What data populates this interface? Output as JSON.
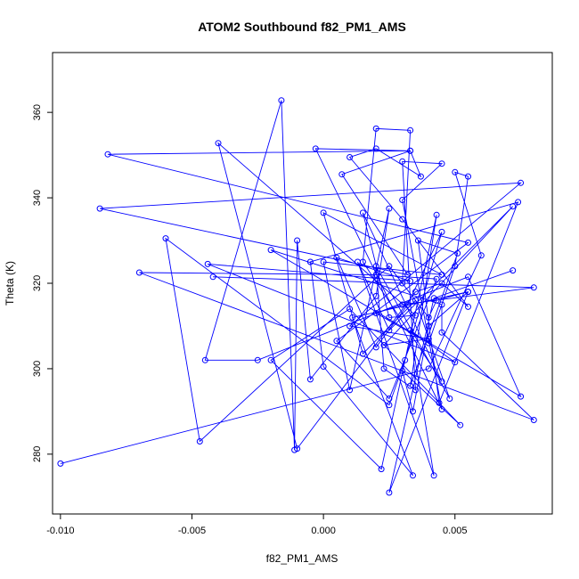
{
  "chart_data": {
    "type": "line",
    "title": "ATOM2 Southbound f82_PM1_AMS",
    "xlabel": "f82_PM1_AMS",
    "ylabel": "Theta (K)",
    "xlim": [
      -0.0103,
      0.0087
    ],
    "ylim": [
      266,
      374
    ],
    "xticks": [
      -0.01,
      -0.005,
      0.0,
      0.005
    ],
    "xtick_labels": [
      "-0.010",
      "-0.005",
      "0.000",
      "0.005"
    ],
    "yticks": [
      280,
      300,
      320,
      340,
      360
    ],
    "ytick_labels": [
      "280",
      "300",
      "320",
      "340",
      "360"
    ],
    "grid": false,
    "legend": "none",
    "color": "#0000ff",
    "points": [
      [
        -0.01,
        277.8
      ],
      [
        0.004,
        300.0
      ],
      [
        0.006,
        326.5
      ],
      [
        0.005,
        346.0
      ],
      [
        0.0055,
        345.0
      ],
      [
        0.005,
        324.0
      ],
      [
        0.004,
        306.0
      ],
      [
        0.002,
        313.0
      ],
      [
        0.003,
        315.0
      ],
      [
        0.008,
        319.0
      ],
      [
        -0.0042,
        321.5
      ],
      [
        0.003,
        320.0
      ],
      [
        0.0033,
        355.8
      ],
      [
        0.002,
        356.2
      ],
      [
        0.0015,
        325.0
      ],
      [
        0.0045,
        297.0
      ],
      [
        0.0015,
        336.5
      ],
      [
        0.0025,
        312.0
      ],
      [
        0.0035,
        312.5
      ],
      [
        -0.004,
        352.8
      ],
      [
        -0.001,
        281.3
      ],
      [
        0.0035,
        318.0
      ],
      [
        0.0045,
        320.0
      ],
      [
        0.0055,
        314.5
      ],
      [
        0.003,
        335.0
      ],
      [
        0.001,
        349.5
      ],
      [
        0.002,
        351.5
      ],
      [
        0.0037,
        345.0
      ],
      [
        0.0033,
        351.0
      ],
      [
        -0.0003,
        351.5
      ],
      [
        0.0045,
        290.5
      ],
      [
        0.003,
        339.5
      ],
      [
        0.0045,
        348.0
      ],
      [
        0.003,
        348.5
      ],
      [
        0.0035,
        295.0
      ],
      [
        0.0023,
        300.0
      ],
      [
        0.002,
        324.0
      ],
      [
        0.0048,
        293.0
      ],
      [
        0.0035,
        316.0
      ],
      [
        0.0015,
        303.5
      ],
      [
        0.0,
        336.5
      ],
      [
        0.0045,
        322.0
      ],
      [
        0.0,
        325.0
      ],
      [
        0.001,
        295.0
      ],
      [
        0.0025,
        337.5
      ],
      [
        0.002,
        317.0
      ],
      [
        -0.0005,
        297.5
      ],
      [
        -0.001,
        330.0
      ],
      [
        -0.0011,
        281.0
      ],
      [
        -0.0016,
        362.8
      ],
      [
        -0.0045,
        302.0
      ],
      [
        -0.0025,
        302.0
      ],
      [
        0.0055,
        321.5
      ],
      [
        0.0075,
        293.5
      ],
      [
        -0.002,
        327.8
      ],
      [
        0.0045,
        315.0
      ],
      [
        0.0045,
        308.5
      ],
      [
        0.008,
        288.0
      ],
      [
        -0.007,
        322.5
      ],
      [
        0.002,
        322.0
      ],
      [
        0.0043,
        321.0
      ],
      [
        0.0025,
        293.0
      ],
      [
        0.0005,
        306.5
      ],
      [
        0.0055,
        329.5
      ],
      [
        -0.0082,
        350.2
      ],
      [
        0.0033,
        351.0
      ],
      [
        0.0007,
        345.5
      ],
      [
        0.0032,
        322.0
      ],
      [
        -0.0085,
        337.5
      ],
      [
        0.0075,
        343.5
      ],
      [
        0.001,
        310.0
      ],
      [
        0.004,
        307.0
      ],
      [
        0.0023,
        305.5
      ],
      [
        0.0072,
        338.0
      ],
      [
        0.0025,
        309.0
      ],
      [
        0.0013,
        325.0
      ],
      [
        0.0042,
        275.0
      ],
      [
        0.0033,
        309.0
      ],
      [
        0.005,
        301.5
      ],
      [
        -0.0044,
        324.5
      ],
      [
        0.0033,
        320.5
      ],
      [
        0.0005,
        326.0
      ],
      [
        0.002,
        305.0
      ],
      [
        0.0032,
        315.0
      ],
      [
        0.0045,
        332.0
      ],
      [
        0.0031,
        302.0
      ],
      [
        0.0025,
        291.5
      ],
      [
        -0.006,
        330.5
      ],
      [
        -0.0047,
        283.0
      ],
      [
        0.0025,
        324.0
      ],
      [
        0.004,
        312.0
      ],
      [
        0.0043,
        316.0
      ],
      [
        0.0055,
        318.0
      ],
      [
        0.004,
        310.0
      ],
      [
        0.0034,
        290.0
      ],
      [
        0.003,
        299.5
      ],
      [
        0.0052,
        286.8
      ],
      [
        0.001,
        314.0
      ],
      [
        -0.002,
        302.0
      ],
      [
        0.0022,
        276.5
      ],
      [
        0.0043,
        336.0
      ],
      [
        0.0033,
        296.0
      ],
      [
        0.0051,
        327.0
      ],
      [
        0.0036,
        330.0
      ],
      [
        0.0044,
        292.0
      ],
      [
        0.0074,
        339.0
      ],
      [
        -0.0005,
        325.0
      ],
      [
        0.0,
        300.5
      ],
      [
        0.0034,
        275.0
      ],
      [
        0.0011,
        312.0
      ],
      [
        0.0055,
        318.0
      ],
      [
        0.0025,
        271.0
      ],
      [
        0.0042,
        316.5
      ],
      [
        0.0072,
        323.0
      ]
    ]
  }
}
